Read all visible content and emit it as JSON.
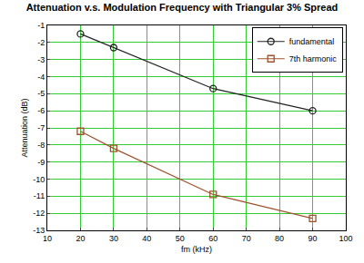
{
  "chart_data": {
    "type": "line",
    "title": "Attenuation v.s. Modulation Frequency with Triangular 3% Spread",
    "x_label": "fm (kHz)",
    "y_label": "Attenuation (dB)",
    "x": [
      20,
      30,
      60,
      90
    ],
    "series": [
      {
        "name": "fundamental",
        "color": "#222222",
        "marker": "circle-open",
        "line_style": "solid",
        "values": [
          -1.5,
          -2.3,
          -4.7,
          -6.0
        ]
      },
      {
        "name": "7th harmonic",
        "color": "#a0522d",
        "marker": "square-open",
        "line_style": "solid",
        "values": [
          -7.2,
          -8.2,
          -10.9,
          -12.3
        ]
      }
    ],
    "xlim": [
      10,
      100
    ],
    "xticks": [
      10,
      20,
      30,
      40,
      50,
      60,
      70,
      80,
      90,
      100
    ],
    "ylim": [
      -13,
      -1
    ],
    "yticks": [
      -13,
      -12,
      -11,
      -10,
      -9,
      -8,
      -7,
      -6,
      -5,
      -4,
      -3,
      -2,
      -1
    ],
    "grid": true,
    "legend": "top-right"
  }
}
